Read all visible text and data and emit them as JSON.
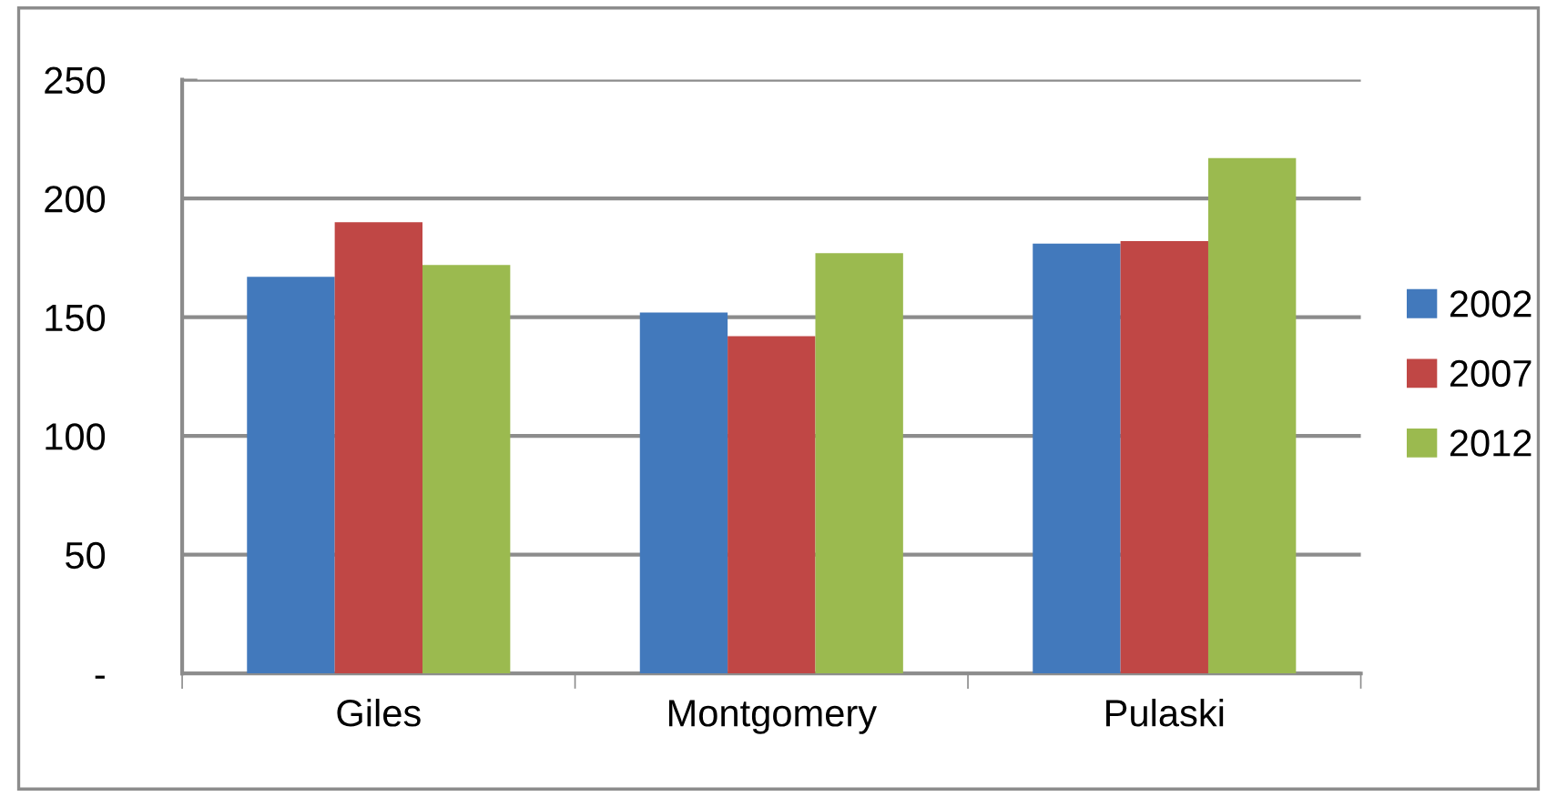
{
  "chart_data": {
    "type": "bar",
    "categories": [
      "Giles",
      "Montgomery",
      "Pulaski"
    ],
    "series": [
      {
        "name": "2002",
        "color": "#4279bc",
        "values": [
          167,
          152,
          181
        ]
      },
      {
        "name": "2007",
        "color": "#c04745",
        "values": [
          190,
          142,
          182
        ]
      },
      {
        "name": "2012",
        "color": "#9bba4f",
        "values": [
          172,
          177,
          217
        ]
      }
    ],
    "ylim": [
      0,
      250
    ],
    "yticks": [
      {
        "value": 0,
        "label": "-"
      },
      50,
      100,
      150,
      200,
      250
    ],
    "grid": "y",
    "legend": "right"
  }
}
